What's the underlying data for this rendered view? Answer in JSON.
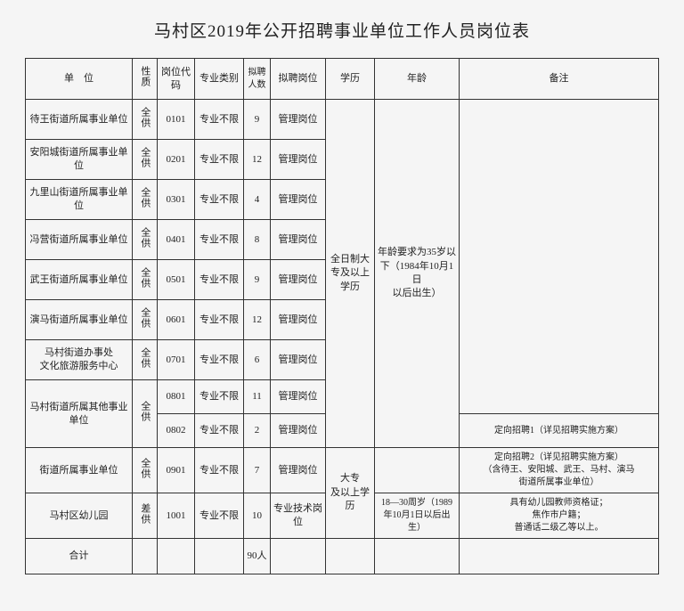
{
  "title": "马村区2019年公开招聘事业单位工作人员岗位表",
  "headers": {
    "unit": "单　位",
    "nature": "性质",
    "code": "岗位代码",
    "major": "专业类别",
    "count": "拟聘人数",
    "post": "拟聘岗位",
    "edu": "学历",
    "age": "年龄",
    "note": "备注"
  },
  "rows": [
    {
      "unit": "待王街道所属事业单位",
      "nature": "全供",
      "code": "0101",
      "major": "专业不限",
      "count": "9",
      "post": "管理岗位"
    },
    {
      "unit": "安阳城街道所属事业单位",
      "nature": "全供",
      "code": "0201",
      "major": "专业不限",
      "count": "12",
      "post": "管理岗位"
    },
    {
      "unit": "九里山街道所属事业单位",
      "nature": "全供",
      "code": "0301",
      "major": "专业不限",
      "count": "4",
      "post": "管理岗位"
    },
    {
      "unit": "冯营街道所属事业单位",
      "nature": "全供",
      "code": "0401",
      "major": "专业不限",
      "count": "8",
      "post": "管理岗位"
    },
    {
      "unit": "武王街道所属事业单位",
      "nature": "全供",
      "code": "0501",
      "major": "专业不限",
      "count": "9",
      "post": "管理岗位"
    },
    {
      "unit": "演马街道所属事业单位",
      "nature": "全供",
      "code": "0601",
      "major": "专业不限",
      "count": "12",
      "post": "管理岗位"
    },
    {
      "unit": "马村街道办事处\n文化旅游服务中心",
      "nature": "全供",
      "code": "0701",
      "major": "专业不限",
      "count": "6",
      "post": "管理岗位"
    },
    {
      "unit": "马村街道所属其他事业单位",
      "nature": "全供",
      "code": "0801",
      "major": "专业不限",
      "count": "11",
      "post": "管理岗位"
    },
    {
      "code": "0802",
      "major": "专业不限",
      "count": "2",
      "post": "管理岗位",
      "note": "定向招聘1（详见招聘实施方案）"
    },
    {
      "unit": "街道所属事业单位",
      "nature": "全供",
      "code": "0901",
      "major": "专业不限",
      "count": "7",
      "post": "管理岗位",
      "note": "定向招聘2（详见招聘实施方案）\n（含待王、安阳城、武王、马村、演马\n街道所属事业单位）"
    },
    {
      "unit": "马村区幼儿园",
      "nature": "差供",
      "code": "1001",
      "major": "专业不限",
      "count": "10",
      "post": "专业技术岗位",
      "age": "18—30周岁（1989\n年10月1日以后出\n生）",
      "note": "具有幼儿园教师资格证；\n焦作市户籍；\n普通话二级乙等以上。"
    }
  ],
  "edu1": "全日制大\n专及以上\n学历",
  "edu2": "大专\n及以上学\n历",
  "age1": "年龄要求为35岁以\n下（1984年10月1日\n以后出生）",
  "total_label": "合计",
  "total_count": "90人"
}
